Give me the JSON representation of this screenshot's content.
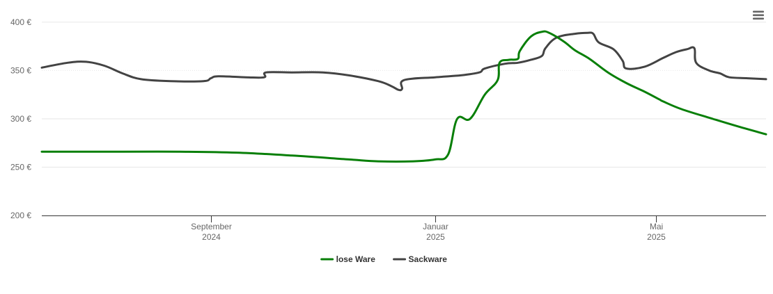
{
  "chart_data": {
    "type": "line",
    "currency_unit": "€",
    "y_ticks": [
      200,
      250,
      300,
      350,
      400
    ],
    "ylim": [
      200,
      410
    ],
    "x_range": [
      "2024-06-01",
      "2025-06-30"
    ],
    "x_ticks": [
      {
        "date": "2024-09-01",
        "month": "September",
        "year": "2024"
      },
      {
        "date": "2025-01-01",
        "month": "Januar",
        "year": "2025"
      },
      {
        "date": "2025-05-01",
        "month": "Mai",
        "year": "2025"
      }
    ],
    "grid": "horizontal",
    "legend_position": "bottom-center",
    "series": [
      {
        "name": "lose Ware",
        "color": "#087f08",
        "points": [
          [
            "2024-06-01",
            266
          ],
          [
            "2024-07-15",
            266
          ],
          [
            "2024-08-15",
            266
          ],
          [
            "2024-09-15",
            265
          ],
          [
            "2024-10-15",
            262
          ],
          [
            "2024-11-15",
            258
          ],
          [
            "2024-12-01",
            256
          ],
          [
            "2024-12-20",
            256
          ],
          [
            "2025-01-01",
            258
          ],
          [
            "2025-01-08",
            263
          ],
          [
            "2025-01-13",
            300
          ],
          [
            "2025-01-20",
            300
          ],
          [
            "2025-01-28",
            325
          ],
          [
            "2025-02-04",
            340
          ],
          [
            "2025-02-05",
            358
          ],
          [
            "2025-02-10",
            361
          ],
          [
            "2025-02-15",
            362
          ],
          [
            "2025-02-16",
            370
          ],
          [
            "2025-02-22",
            385
          ],
          [
            "2025-02-28",
            390
          ],
          [
            "2025-03-04",
            389
          ],
          [
            "2025-03-12",
            380
          ],
          [
            "2025-03-18",
            371
          ],
          [
            "2025-03-26",
            362
          ],
          [
            "2025-04-05",
            348
          ],
          [
            "2025-04-15",
            337
          ],
          [
            "2025-04-25",
            328
          ],
          [
            "2025-05-03",
            320
          ],
          [
            "2025-05-05",
            318
          ],
          [
            "2025-05-15",
            310
          ],
          [
            "2025-06-01",
            300
          ],
          [
            "2025-06-15",
            292
          ],
          [
            "2025-06-30",
            284
          ]
        ]
      },
      {
        "name": "Sackware",
        "color": "#434343",
        "points": [
          [
            "2024-06-01",
            353
          ],
          [
            "2024-06-15",
            358
          ],
          [
            "2024-06-25",
            359
          ],
          [
            "2024-07-05",
            355
          ],
          [
            "2024-07-15",
            347
          ],
          [
            "2024-07-25",
            341
          ],
          [
            "2024-08-10",
            339
          ],
          [
            "2024-08-28",
            339
          ],
          [
            "2024-09-01",
            342
          ],
          [
            "2024-09-05",
            344
          ],
          [
            "2024-09-20",
            343
          ],
          [
            "2024-09-30",
            343
          ],
          [
            "2024-10-01",
            348
          ],
          [
            "2024-10-15",
            348
          ],
          [
            "2024-11-01",
            348
          ],
          [
            "2024-11-15",
            345
          ],
          [
            "2024-12-01",
            339
          ],
          [
            "2024-12-08",
            334
          ],
          [
            "2024-12-12",
            330
          ],
          [
            "2024-12-14",
            331
          ],
          [
            "2024-12-15",
            340
          ],
          [
            "2025-01-01",
            343
          ],
          [
            "2025-01-15",
            345
          ],
          [
            "2025-01-25",
            348
          ],
          [
            "2025-01-28",
            352
          ],
          [
            "2025-02-08",
            357
          ],
          [
            "2025-02-15",
            358
          ],
          [
            "2025-02-22",
            361
          ],
          [
            "2025-02-28",
            365
          ],
          [
            "2025-03-02",
            373
          ],
          [
            "2025-03-08",
            384
          ],
          [
            "2025-03-18",
            388
          ],
          [
            "2025-03-25",
            389
          ],
          [
            "2025-03-28",
            388
          ],
          [
            "2025-03-31",
            379
          ],
          [
            "2025-04-08",
            372
          ],
          [
            "2025-04-13",
            360
          ],
          [
            "2025-04-15",
            352
          ],
          [
            "2025-04-25",
            354
          ],
          [
            "2025-05-05",
            363
          ],
          [
            "2025-05-12",
            369
          ],
          [
            "2025-05-18",
            372
          ],
          [
            "2025-05-22",
            373
          ],
          [
            "2025-05-23",
            358
          ],
          [
            "2025-05-30",
            350
          ],
          [
            "2025-06-05",
            347
          ],
          [
            "2025-06-10",
            343
          ],
          [
            "2025-06-20",
            342
          ],
          [
            "2025-06-30",
            341
          ]
        ]
      }
    ]
  },
  "menu": {
    "icon": "hamburger-menu-icon"
  }
}
